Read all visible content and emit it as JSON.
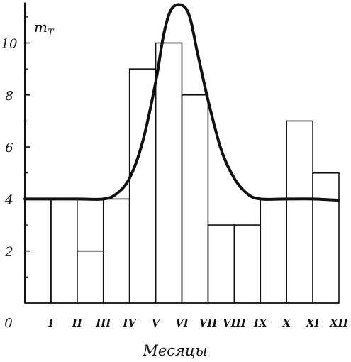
{
  "chart_data": {
    "type": "bar",
    "title": "",
    "ylabel": "m",
    "ylabel_subscript": "T",
    "xlabel": "Месяцы",
    "origin_label": "0",
    "categories": [
      "I",
      "II",
      "III",
      "IV",
      "V",
      "VI",
      "VII",
      "VIII",
      "IX",
      "X",
      "XI",
      "XII"
    ],
    "values": [
      4,
      4,
      2,
      4,
      9,
      10,
      8,
      3,
      3,
      4,
      7,
      5
    ],
    "ylim": [
      0,
      11.5
    ],
    "yticks": [
      2,
      4,
      6,
      8,
      10
    ],
    "ytick_labels": [
      "2",
      "4",
      "6",
      "8",
      "10"
    ],
    "yminor_ticks": [
      1,
      3,
      5,
      7,
      9,
      11
    ],
    "grid": false,
    "curve": {
      "type": "line",
      "x": [
        0,
        2,
        3,
        3.5,
        4,
        4.5,
        5,
        5.3,
        5.6,
        6,
        6.3,
        6.6,
        7,
        7.5,
        8,
        8.5,
        9,
        10,
        11,
        12
      ],
      "y": [
        4.0,
        4.0,
        4.0,
        4.2,
        4.8,
        6.2,
        8.5,
        10.3,
        11.3,
        11.45,
        11.0,
        9.6,
        7.8,
        5.9,
        4.8,
        4.2,
        4.0,
        4.0,
        4.0,
        3.95
      ]
    },
    "colors": {
      "ink": "#111111",
      "background": "#ffffff"
    }
  }
}
